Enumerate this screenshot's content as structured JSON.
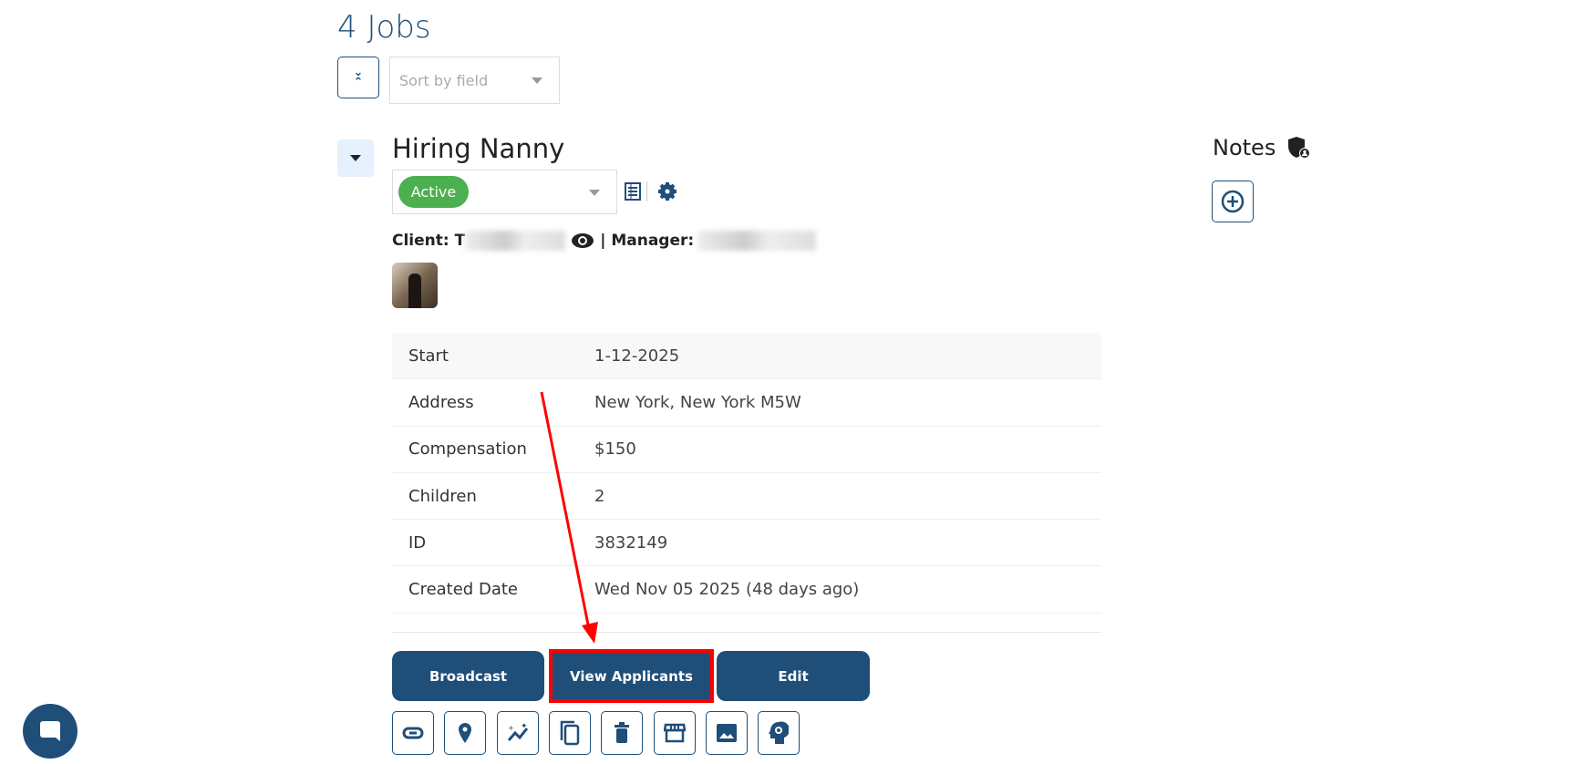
{
  "header": {
    "title": "4 Jobs",
    "sort_placeholder": "Sort by field"
  },
  "job": {
    "title": "Hiring Nanny",
    "status": "Active",
    "status_color": "#4caf50",
    "client_label": "Client: T",
    "manager_label": "| Manager:",
    "details": [
      {
        "label": "Start",
        "value": "1-12-2025"
      },
      {
        "label": "Address",
        "value": "New York, New York M5W"
      },
      {
        "label": "Compensation",
        "value": "$150"
      },
      {
        "label": "Children",
        "value": "2"
      },
      {
        "label": "ID",
        "value": "3832149"
      },
      {
        "label": "Created Date",
        "value": "Wed Nov 05 2025 (48 days ago)"
      }
    ],
    "actions": {
      "broadcast": "Broadcast",
      "view_applicants": "View Applicants",
      "edit": "Edit"
    },
    "icon_actions": [
      "link-icon",
      "map-pin-icon",
      "sparkle-chart-icon",
      "copy-icon",
      "trash-icon",
      "storefront-icon",
      "image-icon",
      "head-gear-icon"
    ]
  },
  "notes": {
    "title": "Notes"
  },
  "colors": {
    "accent": "#1f4e79",
    "highlight": "#ff0000"
  }
}
